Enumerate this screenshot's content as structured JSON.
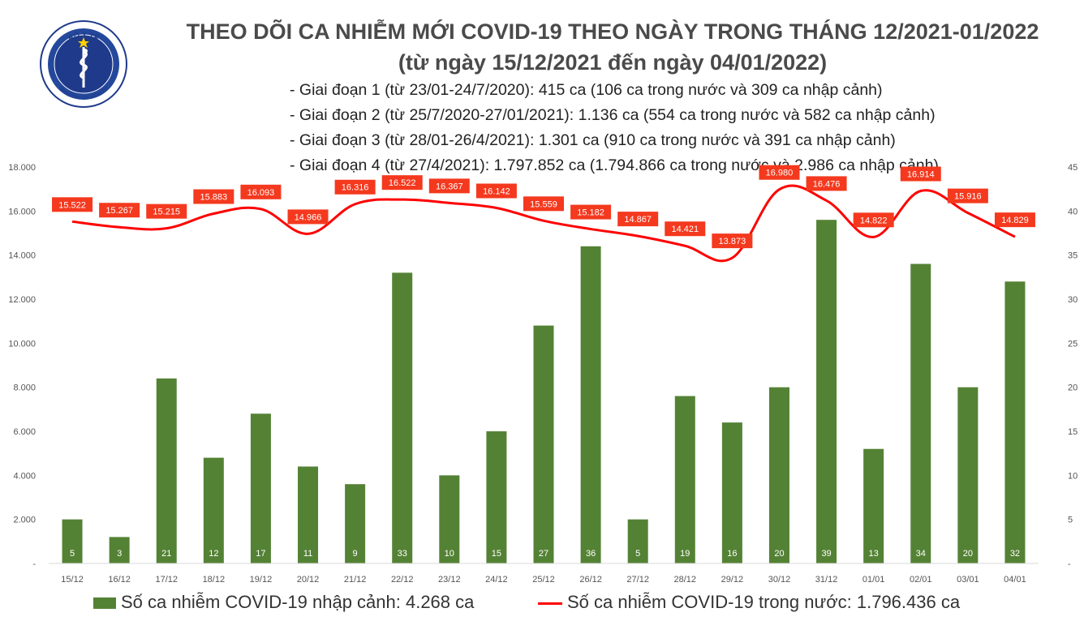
{
  "logo": {
    "top_text": "BỘ Y TẾ",
    "bottom_text": "MINISTRY OF HEALTH"
  },
  "title_line1": "THEO DÕI CA NHIỄM MỚI COVID-19 THEO NGÀY TRONG THÁNG 12/2021-01/2022",
  "title_line2": "(từ ngày 15/12/2021 đến ngày 04/01/2022)",
  "notes": [
    "- Giai đoạn 1 (từ 23/01-24/7/2020): 415 ca (106 ca trong nước và 309 ca nhập cảnh)",
    "- Giai đoạn 2 (từ 25/7/2020-27/01/2021): 1.136 ca (554 ca trong nước và 582 ca nhập cảnh)",
    "- Giai đoạn 3 (từ 28/01-26/4/2021): 1.301 ca (910 ca trong nước và 391 ca nhập cảnh)",
    "- Giai đoạn 4 (từ 27/4/2021): 1.797.852 ca (1.794.866 ca trong nước và 2.986 ca nhập cảnh)"
  ],
  "legend": {
    "bar": "Số ca nhiễm COVID-19 nhập cảnh: 4.268 ca",
    "line": "Số ca nhiễm COVID-19 trong nước: 1.796.436 ca"
  },
  "colors": {
    "bar": "#548235",
    "line": "#ff0000",
    "label_bg": "#f4391e",
    "title": "#4a4a4a"
  },
  "chart_data": {
    "type": "bar+line",
    "categories": [
      "15/12",
      "16/12",
      "17/12",
      "18/12",
      "19/12",
      "20/12",
      "21/12",
      "22/12",
      "23/12",
      "24/12",
      "25/12",
      "26/12",
      "27/12",
      "28/12",
      "29/12",
      "30/12",
      "31/12",
      "01/01",
      "02/01",
      "03/01",
      "04/01"
    ],
    "series": [
      {
        "name": "Số ca nhiễm COVID-19 nhập cảnh: 4.268 ca",
        "type": "bar",
        "axis": "right",
        "values": [
          5,
          3,
          21,
          12,
          17,
          11,
          9,
          33,
          10,
          15,
          27,
          36,
          5,
          19,
          16,
          20,
          39,
          13,
          34,
          20,
          32
        ],
        "labels": [
          "5",
          "3",
          "21",
          "12",
          "17",
          "11",
          "9",
          "33",
          "10",
          "15",
          "27",
          "36",
          "5",
          "19",
          "16",
          "20",
          "39",
          "13",
          "34",
          "20",
          "32"
        ]
      },
      {
        "name": "Số ca nhiễm COVID-19 trong nước: 1.796.436 ca",
        "type": "line",
        "axis": "left",
        "values": [
          15522,
          15267,
          15215,
          15883,
          16093,
          14966,
          16316,
          16522,
          16367,
          16142,
          15559,
          15182,
          14867,
          14421,
          13873,
          16980,
          16476,
          14822,
          16914,
          15916,
          14829
        ],
        "labels": [
          "15.522",
          "15.267",
          "15.215",
          "15.883",
          "16.093",
          "14.966",
          "16.316",
          "16.522",
          "16.367",
          "16.142",
          "15.559",
          "15.182",
          "14.867",
          "14.421",
          "13.873",
          "16.980",
          "16.476",
          "14.822",
          "16.914",
          "15.916",
          "14.829"
        ]
      }
    ],
    "y_left": {
      "ylim": [
        0,
        18000
      ],
      "ticks": [
        "-",
        "2.000",
        "4.000",
        "6.000",
        "8.000",
        "10.000",
        "12.000",
        "14.000",
        "16.000",
        "18.000"
      ]
    },
    "y_right": {
      "ylim": [
        0,
        45
      ],
      "ticks": [
        "-",
        "5",
        "10",
        "15",
        "20",
        "25",
        "30",
        "35",
        "40",
        "45"
      ]
    },
    "legend_position": "bottom",
    "grid": false
  }
}
